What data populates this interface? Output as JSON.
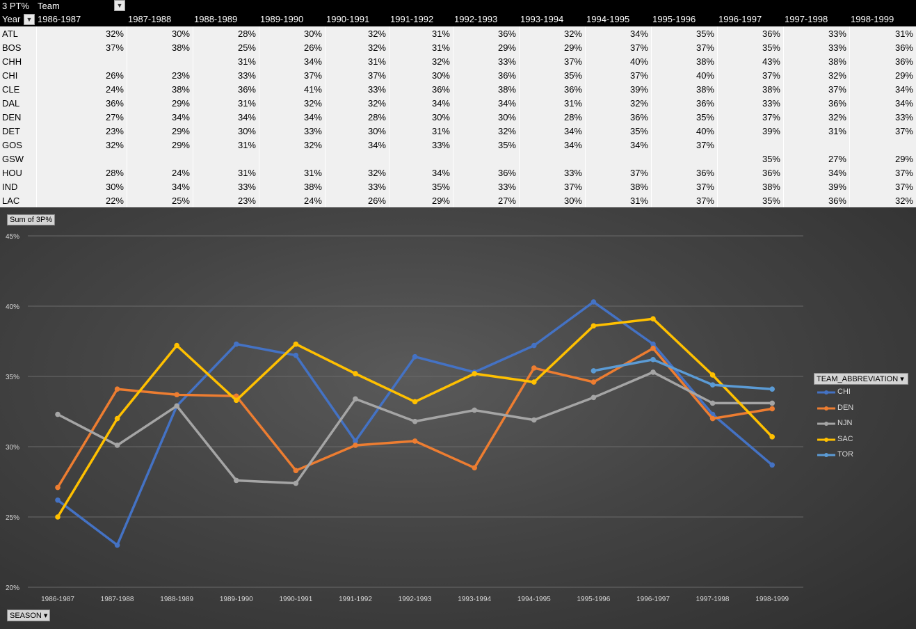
{
  "pivot": {
    "title": "3 PT%",
    "column_field": "Team",
    "row_field": "Year",
    "columns": [
      "1986-1987",
      "1987-1988",
      "1988-1989",
      "1989-1990",
      "1990-1991",
      "1991-1992",
      "1992-1993",
      "1993-1994",
      "1994-1995",
      "1995-1996",
      "1996-1997",
      "1997-1998",
      "1998-1999"
    ],
    "rows": [
      {
        "team": "ATL",
        "values": [
          "32%",
          "30%",
          "28%",
          "30%",
          "32%",
          "31%",
          "36%",
          "32%",
          "34%",
          "35%",
          "36%",
          "33%",
          "31%"
        ]
      },
      {
        "team": "BOS",
        "values": [
          "37%",
          "38%",
          "25%",
          "26%",
          "32%",
          "31%",
          "29%",
          "29%",
          "37%",
          "37%",
          "35%",
          "33%",
          "36%"
        ]
      },
      {
        "team": "CHH",
        "values": [
          "",
          "",
          "31%",
          "34%",
          "31%",
          "32%",
          "33%",
          "37%",
          "40%",
          "38%",
          "43%",
          "38%",
          "36%"
        ]
      },
      {
        "team": "CHI",
        "values": [
          "26%",
          "23%",
          "33%",
          "37%",
          "37%",
          "30%",
          "36%",
          "35%",
          "37%",
          "40%",
          "37%",
          "32%",
          "29%"
        ]
      },
      {
        "team": "CLE",
        "values": [
          "24%",
          "38%",
          "36%",
          "41%",
          "33%",
          "36%",
          "38%",
          "36%",
          "39%",
          "38%",
          "38%",
          "37%",
          "34%"
        ]
      },
      {
        "team": "DAL",
        "values": [
          "36%",
          "29%",
          "31%",
          "32%",
          "32%",
          "34%",
          "34%",
          "31%",
          "32%",
          "36%",
          "33%",
          "36%",
          "34%"
        ]
      },
      {
        "team": "DEN",
        "values": [
          "27%",
          "34%",
          "34%",
          "34%",
          "28%",
          "30%",
          "30%",
          "28%",
          "36%",
          "35%",
          "37%",
          "32%",
          "33%"
        ]
      },
      {
        "team": "DET",
        "values": [
          "23%",
          "29%",
          "30%",
          "33%",
          "30%",
          "31%",
          "32%",
          "34%",
          "35%",
          "40%",
          "39%",
          "31%",
          "37%"
        ]
      },
      {
        "team": "GOS",
        "values": [
          "32%",
          "29%",
          "31%",
          "32%",
          "34%",
          "33%",
          "35%",
          "34%",
          "34%",
          "37%",
          "",
          "",
          ""
        ]
      },
      {
        "team": "GSW",
        "values": [
          "",
          "",
          "",
          "",
          "",
          "",
          "",
          "",
          "",
          "",
          "35%",
          "27%",
          "29%"
        ]
      },
      {
        "team": "HOU",
        "values": [
          "28%",
          "24%",
          "31%",
          "31%",
          "32%",
          "34%",
          "36%",
          "33%",
          "37%",
          "36%",
          "36%",
          "34%",
          "37%"
        ]
      },
      {
        "team": "IND",
        "values": [
          "30%",
          "34%",
          "33%",
          "38%",
          "33%",
          "35%",
          "33%",
          "37%",
          "38%",
          "37%",
          "38%",
          "39%",
          "37%"
        ]
      },
      {
        "team": "LAC",
        "values": [
          "22%",
          "25%",
          "23%",
          "24%",
          "26%",
          "29%",
          "27%",
          "30%",
          "31%",
          "37%",
          "35%",
          "36%",
          "32%"
        ]
      }
    ]
  },
  "chart_data": {
    "type": "line",
    "title": "",
    "value_field_label": "Sum of 3P%",
    "axis_field_label": "SEASON",
    "legend_title": "TEAM_ABBREVIATION",
    "legend_position": "right",
    "ylim": [
      0.2,
      0.45
    ],
    "y_ticks": [
      "45%",
      "40%",
      "35%",
      "30%",
      "25%",
      "20%"
    ],
    "y_tick_values": [
      0.45,
      0.4,
      0.35,
      0.3,
      0.25,
      0.2
    ],
    "grid": true,
    "categories": [
      "1986-1987",
      "1987-1988",
      "1988-1989",
      "1989-1990",
      "1990-1991",
      "1991-1992",
      "1992-1993",
      "1993-1994",
      "1994-1995",
      "1995-1996",
      "1996-1997",
      "1997-1998",
      "1998-1999"
    ],
    "series": [
      {
        "name": "CHI",
        "color": "#4472c4",
        "values": [
          0.262,
          0.23,
          0.329,
          0.373,
          0.365,
          0.304,
          0.364,
          0.353,
          0.372,
          0.403,
          0.373,
          0.323,
          0.287
        ]
      },
      {
        "name": "DEN",
        "color": "#ed7d31",
        "values": [
          0.271,
          0.341,
          0.337,
          0.336,
          0.283,
          0.301,
          0.304,
          0.285,
          0.356,
          0.346,
          0.37,
          0.32,
          0.327
        ]
      },
      {
        "name": "NJN",
        "color": "#a5a5a5",
        "values": [
          0.323,
          0.301,
          0.329,
          0.276,
          0.274,
          0.334,
          0.318,
          0.326,
          0.319,
          0.335,
          0.353,
          0.331,
          0.331
        ]
      },
      {
        "name": "SAC",
        "color": "#ffc000",
        "values": [
          0.25,
          0.32,
          0.372,
          0.333,
          0.373,
          0.352,
          0.332,
          0.352,
          0.346,
          0.386,
          0.391,
          0.351,
          0.307
        ]
      },
      {
        "name": "TOR",
        "color": "#5b9bd5",
        "values": [
          null,
          null,
          null,
          null,
          null,
          null,
          null,
          null,
          null,
          0.354,
          0.362,
          0.344,
          0.341
        ]
      }
    ]
  }
}
